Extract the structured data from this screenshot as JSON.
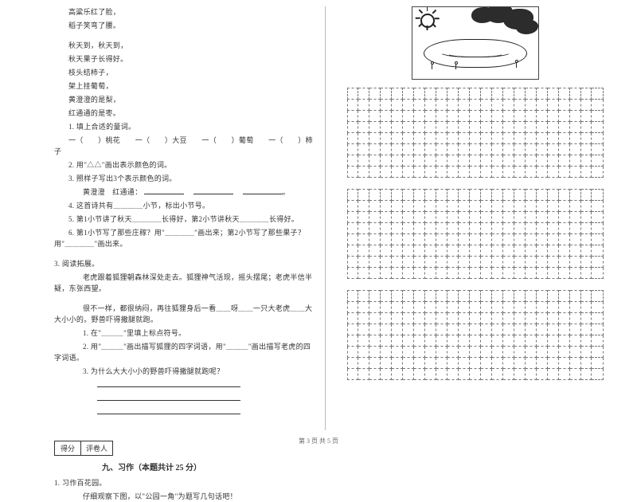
{
  "poem_left": [
    "高粱乐红了脸，",
    "稻子笑弯了腰。"
  ],
  "poem_right_block": [
    "秋天到，秋天到，",
    "秋天果子长得好。",
    "枝头结柿子，",
    "架上挂葡萄，",
    "黄澄澄的是梨，",
    "红通通的是枣。"
  ],
  "q1": {
    "stem": "1. 填上合适的量词。",
    "row": "一（　　）桃花　　一（　　）大豆　　一（　　）葡萄　　一（　　）柿子"
  },
  "q2": "2. 用\"△△\"画出表示颜色的词。",
  "q3": {
    "stem": "3. 照样子写出3个表示颜色的词。",
    "example": "黄澄澄　红通通："
  },
  "q4": "4. 这首诗共有＿＿＿＿小节，标出小节号。",
  "q5": "5. 第1小节讲了秋天＿＿＿＿长得好，第2小节讲秋天＿＿＿＿长得好。",
  "q6": "6. 第1小节写了那些庄稼？用\"＿＿＿＿\"画出来；第2小节写了那些果子？用\"＿＿＿＿\"画出来。",
  "reading": {
    "title": "3. 阅读拓展。",
    "p1": "老虎跟着狐狸朝森林深处走去。狐狸神气活现，摇头摆尾；老虎半信半疑，东张西望。",
    "p2": "很不一样，都很纳闷，再往狐狸身后一看＿＿呀＿＿一只大老虎＿＿大大小小的。野兽吓得撒腿就跑。",
    "sub1": "1. 在\"＿＿＿\"里填上标点符号。",
    "sub2": "2. 用\"＿＿＿\"画出描写狐狸的四字词语，用\"＿＿＿\"画出描写老虎的四字词语。",
    "sub3": "3. 为什么大大小小的野兽吓得撒腿就跑呢？"
  },
  "score": {
    "left": "得分",
    "right": "评卷人"
  },
  "section9": "九、习作（本题共计 25 分）",
  "zuowen": {
    "a": "1. 习作百花园。",
    "b": "仔细观察下图，以\"公园一角\"为题写几句话吧！"
  },
  "footer": "第 3 页 共 5 页",
  "grid": {
    "rows": 8,
    "cols": 23
  },
  "colors": {
    "text": "#333333",
    "border": "#333333",
    "grid_dash": "#777777",
    "divider": "#bbbbbb",
    "bg": "#ffffff"
  },
  "fontsize": {
    "body": 9,
    "section": 10,
    "footer": 8
  }
}
